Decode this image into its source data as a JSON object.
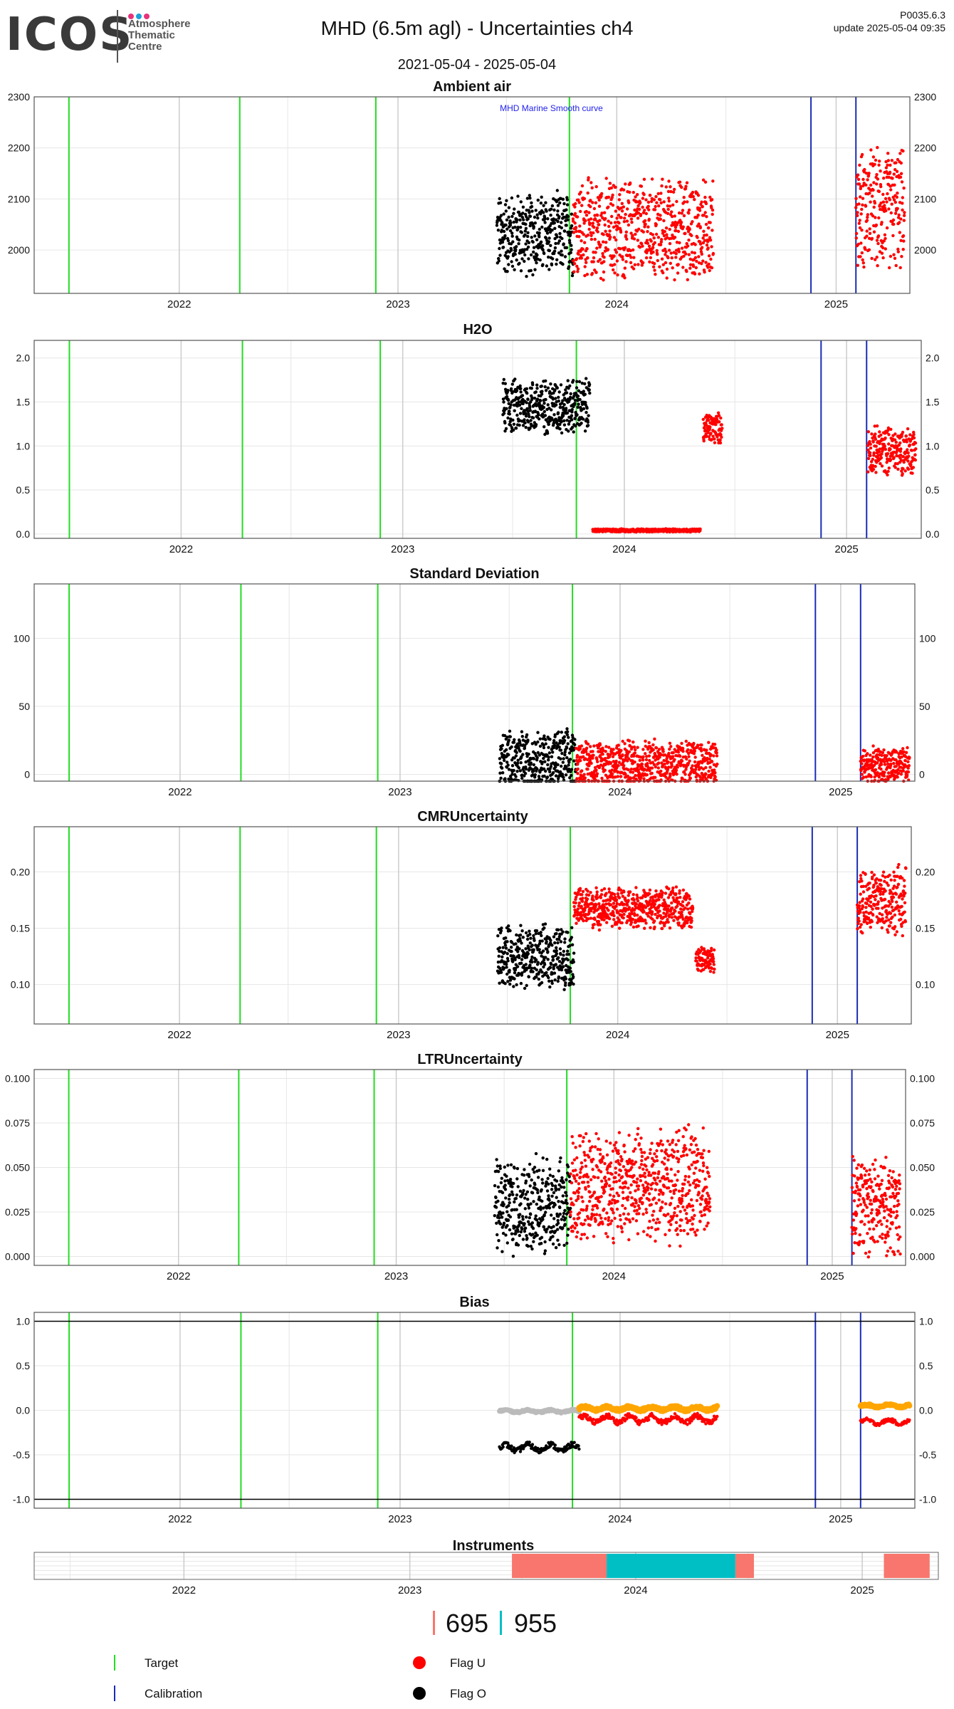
{
  "header": {
    "logo": "ICOS",
    "logo_lines": [
      "Atmosphere",
      "Thematic",
      "Centre"
    ],
    "title": "MHD  (6.5m agl) - Uncertainties ch4",
    "date_range": "2021-05-04 - 2025-05-04",
    "version": "P0035.6.3",
    "update": "update  2025-05-04 09:35"
  },
  "colors": {
    "target": "#22dd22",
    "calibration": "#1a2db5",
    "flag_u": "#ff0000",
    "flag_o": "#000000",
    "smooth_grey": "#bbbbbb",
    "bias_orange": "#ffa500",
    "instr_695": "#f8766d",
    "instr_955": "#00bfc4",
    "grid": "#e6e6e6",
    "year_grid": "#cccccc"
  },
  "time_axis": {
    "start": "2021-05-04",
    "end": "2025-05-04",
    "ticks": [
      "2022",
      "2023",
      "2024",
      "2025"
    ],
    "target_lines": [
      "2021-07-01",
      "2022-04-12",
      "2022-11-25",
      "2023-10-14"
    ],
    "calibration_lines": [
      "2024-11-20",
      "2025-02-03"
    ]
  },
  "chart_data": [
    {
      "type": "scatter",
      "title": "Ambient air",
      "annotation": "MHD Marine Smooth curve",
      "ylim": [
        1915,
        2300
      ],
      "yticks": [
        "2000",
        "2100",
        "2200",
        "2300"
      ],
      "series": [
        {
          "name": "Flag O",
          "segments": [
            {
              "start": "2023-06-15",
              "end": "2023-10-20",
              "base": 2030,
              "spread": 90
            }
          ]
        },
        {
          "name": "Flag U",
          "segments": [
            {
              "start": "2023-10-20",
              "end": "2024-06-10",
              "base": 2040,
              "spread": 110
            },
            {
              "start": "2025-02-03",
              "end": "2025-04-25",
              "base": 2080,
              "spread": 130
            }
          ]
        }
      ]
    },
    {
      "type": "scatter",
      "title": "H2O",
      "ylim": [
        -0.05,
        2.2
      ],
      "yticks": [
        "0.0",
        "0.5",
        "1.0",
        "1.5",
        "2.0"
      ],
      "series": [
        {
          "name": "Flag O",
          "segments": [
            {
              "start": "2023-06-15",
              "end": "2023-11-05",
              "base": 1.45,
              "spread": 0.35
            }
          ]
        },
        {
          "name": "Flag U",
          "segments": [
            {
              "start": "2023-11-10",
              "end": "2024-05-05",
              "base": 0.04,
              "spread": 0.02
            },
            {
              "start": "2024-05-10",
              "end": "2024-06-10",
              "base": 1.2,
              "spread": 0.2
            },
            {
              "start": "2025-02-05",
              "end": "2025-04-25",
              "base": 0.95,
              "spread": 0.3
            }
          ]
        }
      ]
    },
    {
      "type": "scatter",
      "title": "Standard Deviation",
      "ylim": [
        -5,
        140
      ],
      "yticks": [
        "0",
        "50",
        "100"
      ],
      "series": [
        {
          "name": "Flag O",
          "segments": [
            {
              "start": "2023-06-15",
              "end": "2023-10-20",
              "base": 10,
              "spread": 25
            }
          ]
        },
        {
          "name": "Flag U",
          "segments": [
            {
              "start": "2023-10-20",
              "end": "2024-06-10",
              "base": 8,
              "spread": 20
            },
            {
              "start": "2025-02-03",
              "end": "2025-04-25",
              "base": 6,
              "spread": 15
            }
          ]
        }
      ]
    },
    {
      "type": "scatter",
      "title": "CMRUncertainty",
      "ylim": [
        0.065,
        0.24
      ],
      "yticks": [
        "0.10",
        "0.15",
        "0.20"
      ],
      "series": [
        {
          "name": "Flag O",
          "segments": [
            {
              "start": "2023-06-15",
              "end": "2023-10-20",
              "base": 0.125,
              "spread": 0.03
            }
          ]
        },
        {
          "name": "Flag U",
          "segments": [
            {
              "start": "2023-10-20",
              "end": "2024-05-05",
              "base": 0.168,
              "spread": 0.02
            },
            {
              "start": "2024-05-10",
              "end": "2024-06-10",
              "base": 0.122,
              "spread": 0.012
            },
            {
              "start": "2025-02-03",
              "end": "2025-04-25",
              "base": 0.175,
              "spread": 0.035
            }
          ]
        }
      ]
    },
    {
      "type": "scatter",
      "title": "LTRUncertainty",
      "ylim": [
        -0.005,
        0.105
      ],
      "yticks": [
        "0.000",
        "0.025",
        "0.050",
        "0.075",
        "0.100"
      ],
      "series": [
        {
          "name": "Flag O",
          "segments": [
            {
              "start": "2023-06-15",
              "end": "2023-10-20",
              "base": 0.028,
              "spread": 0.03
            }
          ]
        },
        {
          "name": "Flag U",
          "segments": [
            {
              "start": "2023-10-20",
              "end": "2024-06-10",
              "base": 0.04,
              "spread": 0.035
            },
            {
              "start": "2025-02-03",
              "end": "2025-04-25",
              "base": 0.028,
              "spread": 0.03
            }
          ]
        }
      ]
    },
    {
      "type": "line",
      "title": "Bias",
      "ylim": [
        -1.1,
        1.1
      ],
      "yticks": [
        "-1.0",
        "-0.5",
        "0.0",
        "0.5",
        "1.0"
      ],
      "hlines": [
        1.0,
        -1.0
      ],
      "series": [
        {
          "name": "Flag O",
          "segments": [
            {
              "start": "2023-06-15",
              "end": "2023-10-25",
              "base": -0.42,
              "spread": 0.12
            }
          ]
        },
        {
          "name": "Flag U",
          "segments": [
            {
              "start": "2023-10-25",
              "end": "2024-06-10",
              "base": -0.1,
              "spread": 0.12
            },
            {
              "start": "2025-02-03",
              "end": "2025-04-25",
              "base": -0.13,
              "spread": 0.08
            }
          ]
        },
        {
          "name": "smooth",
          "segments": [
            {
              "start": "2023-06-15",
              "end": "2023-10-25",
              "base": -0.01,
              "spread": 0.04
            }
          ]
        },
        {
          "name": "orange",
          "segments": [
            {
              "start": "2023-10-25",
              "end": "2024-06-10",
              "base": 0.02,
              "spread": 0.06
            },
            {
              "start": "2025-02-03",
              "end": "2025-04-25",
              "base": 0.05,
              "spread": 0.04
            }
          ]
        }
      ]
    },
    {
      "type": "bar",
      "title": "Instruments",
      "series": [
        {
          "name": "695",
          "periods": [
            [
              "2023-06-15",
              "2023-11-15"
            ],
            [
              "2024-06-10",
              "2024-07-10"
            ],
            [
              "2025-02-05",
              "2025-04-20"
            ]
          ]
        },
        {
          "name": "955",
          "periods": [
            [
              "2023-11-15",
              "2024-06-10"
            ]
          ]
        }
      ]
    }
  ],
  "legend": {
    "instrument_695": "695",
    "instrument_955": "955",
    "target": "Target",
    "calibration": "Calibration",
    "flag_u": "Flag U",
    "flag_o": "Flag O"
  }
}
